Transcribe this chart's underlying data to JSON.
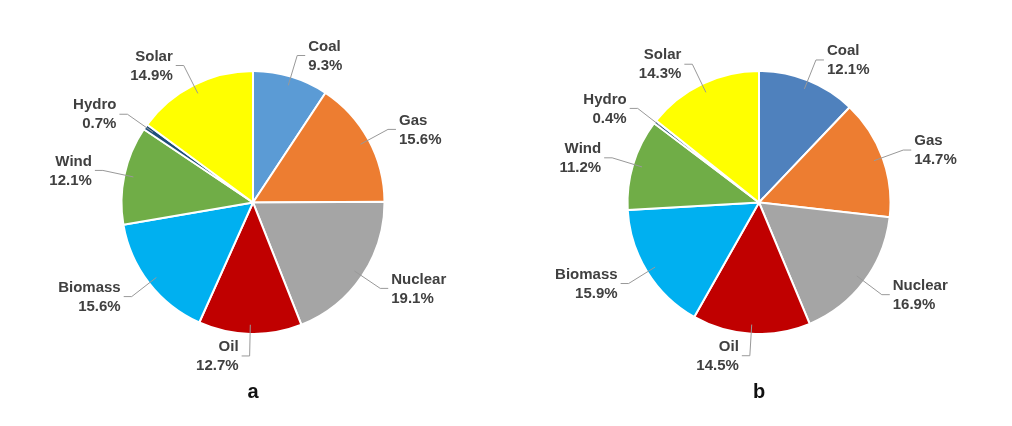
{
  "chart_data": [
    {
      "type": "pie",
      "title": "a",
      "categories": [
        "Coal",
        "Gas",
        "Nuclear",
        "Oil",
        "Biomass",
        "Wind",
        "Hydro",
        "Solar"
      ],
      "values": [
        9.3,
        15.6,
        19.1,
        12.7,
        15.6,
        12.1,
        0.7,
        14.9
      ],
      "value_labels": [
        "9.3%",
        "15.6%",
        "19.1%",
        "12.7%",
        "15.6%",
        "12.1%",
        "0.7%",
        "14.9%"
      ],
      "colors": [
        "#5b9bd5",
        "#ed7d31",
        "#a5a5a5",
        "#c00000",
        "#00b0f0",
        "#70ad47",
        "#1f4e79",
        "#ffff00"
      ]
    },
    {
      "type": "pie",
      "title": "b",
      "categories": [
        "Coal",
        "Gas",
        "Nuclear",
        "Oil",
        "Biomass",
        "Wind",
        "Hydro",
        "Solar"
      ],
      "values": [
        12.1,
        14.7,
        16.9,
        14.5,
        15.9,
        11.2,
        0.4,
        14.3
      ],
      "value_labels": [
        "12.1%",
        "14.7%",
        "16.9%",
        "14.5%",
        "15.9%",
        "11.2%",
        "0.4%",
        "14.3%"
      ],
      "colors": [
        "#4f81bd",
        "#ed7d31",
        "#a5a5a5",
        "#c00000",
        "#00b0f0",
        "#70ad47",
        "#1f4e79",
        "#ffff00"
      ]
    }
  ]
}
